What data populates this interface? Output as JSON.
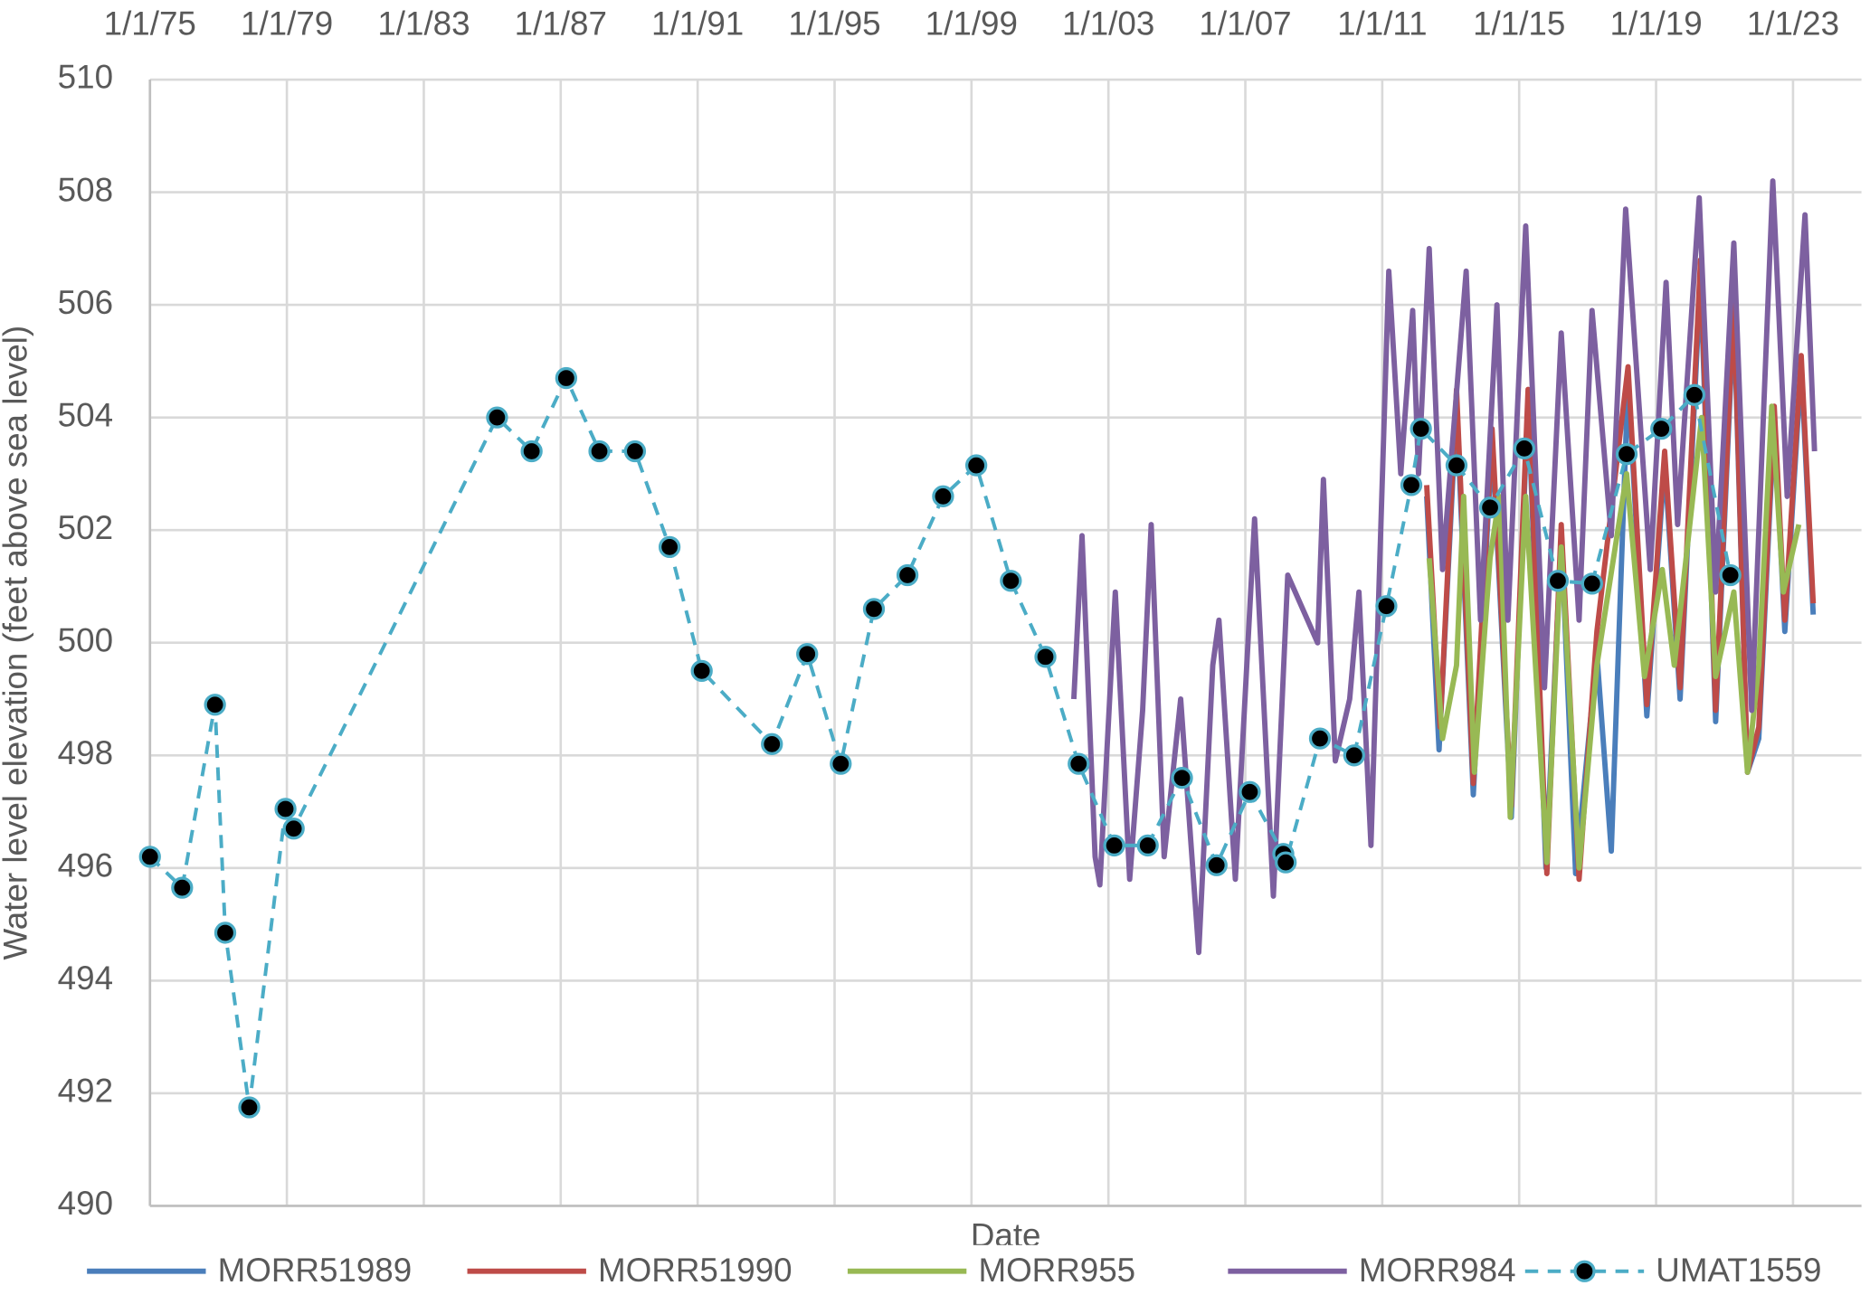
{
  "chart_data": {
    "type": "line",
    "x_label": "Date",
    "y_label": "Water level elevation (feet above sea level)",
    "xlim": [
      1975,
      2025
    ],
    "xticks": [
      {
        "value": 1975,
        "label": "1/1/75"
      },
      {
        "value": 1979,
        "label": "1/1/79"
      },
      {
        "value": 1983,
        "label": "1/1/83"
      },
      {
        "value": 1987,
        "label": "1/1/87"
      },
      {
        "value": 1991,
        "label": "1/1/91"
      },
      {
        "value": 1995,
        "label": "1/1/95"
      },
      {
        "value": 1999,
        "label": "1/1/99"
      },
      {
        "value": 2003,
        "label": "1/1/03"
      },
      {
        "value": 2007,
        "label": "1/1/07"
      },
      {
        "value": 2011,
        "label": "1/1/11"
      },
      {
        "value": 2015,
        "label": "1/1/15"
      },
      {
        "value": 2019,
        "label": "1/1/19"
      },
      {
        "value": 2023,
        "label": "1/1/23"
      }
    ],
    "ylim": [
      490,
      510
    ],
    "yticks": [
      490,
      492,
      494,
      496,
      498,
      500,
      502,
      504,
      506,
      508,
      510
    ],
    "grid": true,
    "legend": "bottom",
    "series": [
      {
        "name": "MORR51989",
        "color": "#4a7ebb",
        "dashed": false,
        "markers": false,
        "x": [
          2012.3,
          2012.66,
          2013.17,
          2013.66,
          2014.21,
          2014.77,
          2015.26,
          2015.78,
          2016.23,
          2016.65,
          2017.27,
          2017.69,
          2018.18,
          2018.73,
          2019.25,
          2019.7,
          2020.3,
          2020.74,
          2021.27,
          2021.67,
          2022.0,
          2022.45,
          2022.76,
          2023.24,
          2023.59
        ],
        "values": [
          502.6,
          498.1,
          504.2,
          497.3,
          503.6,
          496.9,
          504.3,
          496.0,
          501.9,
          495.9,
          499.8,
          496.3,
          504.7,
          498.7,
          503.2,
          499.0,
          506.5,
          498.6,
          505.9,
          497.7,
          498.3,
          504.0,
          500.2,
          504.9,
          500.5
        ]
      },
      {
        "name": "MORR51990",
        "color": "#be4b48",
        "dashed": false,
        "markers": false,
        "x": [
          2012.3,
          2012.69,
          2013.17,
          2013.66,
          2014.21,
          2014.77,
          2015.26,
          2015.81,
          2016.23,
          2016.75,
          2017.27,
          2018.18,
          2018.73,
          2019.25,
          2019.7,
          2020.3,
          2020.74,
          2021.27,
          2021.67,
          2022.0,
          2022.45,
          2022.76,
          2023.24,
          2023.59
        ],
        "values": [
          502.8,
          498.5,
          504.5,
          497.5,
          503.8,
          497.1,
          504.5,
          495.9,
          502.1,
          495.8,
          500.2,
          504.9,
          498.9,
          503.4,
          499.2,
          506.8,
          498.8,
          506.1,
          497.7,
          498.5,
          504.2,
          500.4,
          505.1,
          500.7
        ]
      },
      {
        "name": "MORR955",
        "color": "#98b954",
        "dashed": false,
        "markers": false,
        "x": [
          2012.37,
          2012.76,
          2013.17,
          2013.38,
          2013.69,
          2014.15,
          2014.42,
          2014.74,
          2015.19,
          2015.81,
          2016.23,
          2016.75,
          2017.27,
          2018.14,
          2018.66,
          2019.18,
          2019.53,
          2020.33,
          2020.74,
          2021.27,
          2021.67,
          2022.0,
          2022.38,
          2022.72,
          2023.17
        ],
        "values": [
          501.5,
          498.3,
          499.6,
          502.6,
          497.7,
          501.5,
          502.6,
          496.9,
          502.6,
          496.1,
          501.7,
          496.0,
          499.6,
          503.0,
          499.4,
          501.3,
          499.6,
          504.0,
          499.4,
          500.9,
          497.7,
          499.6,
          504.2,
          500.9,
          502.1
        ]
      },
      {
        "name": "MORR984",
        "color": "#7d60a0",
        "dashed": false,
        "markers": false,
        "x": [
          2001.99,
          2002.23,
          2002.61,
          2002.75,
          2003.2,
          2003.62,
          2004.0,
          2004.25,
          2004.63,
          2005.11,
          2005.64,
          2006.05,
          2006.23,
          2006.71,
          2007.27,
          2007.82,
          2008.24,
          2009.11,
          2009.28,
          2009.63,
          2010.05,
          2010.32,
          2010.67,
          2011.19,
          2011.54,
          2011.89,
          2012.06,
          2012.37,
          2012.76,
          2013.45,
          2013.87,
          2014.35,
          2014.67,
          2015.19,
          2015.74,
          2016.23,
          2016.75,
          2017.13,
          2017.69,
          2018.11,
          2018.83,
          2019.29,
          2019.63,
          2020.26,
          2020.74,
          2021.27,
          2021.79,
          2022.41,
          2022.83,
          2023.35,
          2023.63
        ],
        "values": [
          499.0,
          501.9,
          496.2,
          495.7,
          500.9,
          495.8,
          498.8,
          502.1,
          496.2,
          499.0,
          494.5,
          499.6,
          500.4,
          495.8,
          502.2,
          495.5,
          501.2,
          500.0,
          502.9,
          497.9,
          499.0,
          500.9,
          496.4,
          506.6,
          503.0,
          505.9,
          503.0,
          507.0,
          501.3,
          506.6,
          500.4,
          506.0,
          500.4,
          507.4,
          499.2,
          505.5,
          500.4,
          505.9,
          501.9,
          507.7,
          501.3,
          506.4,
          502.1,
          507.9,
          500.9,
          507.1,
          498.8,
          508.2,
          502.6,
          507.6,
          503.4
        ]
      },
      {
        "name": "UMAT1559",
        "color": "#4bacc6",
        "dashed": true,
        "markers": true,
        "x": [
          1975.0,
          1975.94,
          1976.9,
          1977.2,
          1977.9,
          1978.96,
          1979.2,
          1985.14,
          1986.15,
          1987.16,
          1988.13,
          1989.17,
          1990.18,
          1991.12,
          1993.17,
          1994.2,
          1995.18,
          1996.15,
          1997.13,
          1998.17,
          1999.14,
          2000.15,
          2001.16,
          2002.13,
          2003.17,
          2004.15,
          2005.15,
          2006.16,
          2007.13,
          2008.11,
          2008.18,
          2009.18,
          2010.18,
          2011.12,
          2011.85,
          2012.13,
          2013.17,
          2014.15,
          2015.15,
          2016.13,
          2017.13,
          2018.14,
          2019.15,
          2020.12,
          2021.17
        ],
        "values": [
          496.2,
          495.65,
          498.9,
          494.85,
          491.75,
          497.05,
          496.7,
          504.0,
          503.4,
          504.7,
          503.4,
          503.4,
          501.7,
          499.5,
          498.2,
          499.8,
          497.85,
          500.6,
          501.2,
          502.6,
          503.15,
          501.1,
          499.75,
          497.85,
          496.4,
          496.4,
          497.6,
          496.05,
          497.35,
          496.25,
          496.1,
          498.3,
          498.0,
          500.65,
          502.8,
          503.8,
          503.15,
          502.4,
          503.45,
          501.1,
          501.05,
          503.35,
          503.8,
          504.4,
          501.2
        ]
      }
    ]
  }
}
